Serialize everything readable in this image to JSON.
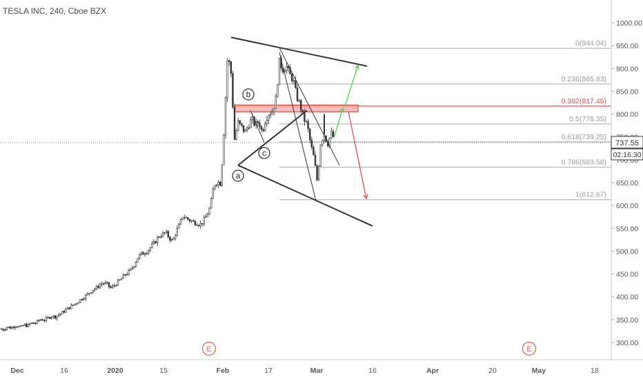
{
  "header": {
    "title": "TESLA INC, 240, Cboe BZX"
  },
  "colors": {
    "background": "#ffffff",
    "candle_up": "#ffffff",
    "candle_down": "#3a3a3a",
    "candle_outline": "#2b2b2b",
    "trendline": "#333333",
    "fib_line": "#a8a8a8",
    "fib_text": "#9a9a9a",
    "fib_highlight": "#e94c4c",
    "zone_fill": "#f6a6a6",
    "arrow_up": "#4cd44c",
    "arrow_down": "#e94c4c",
    "price_tag": "#ffffff",
    "price_tag_text": "#333333",
    "earnings": "#e06050"
  },
  "chart_data": {
    "type": "candlestick",
    "title": "TESLA INC, 240, Cboe BZX",
    "ylim": [
      265,
      1030
    ],
    "y_ticks": [
      300,
      350,
      400,
      450,
      500,
      550,
      600,
      650,
      700,
      750,
      800,
      850,
      900,
      950,
      1000
    ],
    "y_tick_labels": [
      "300.00",
      "350.00",
      "400.00",
      "450.00",
      "500.00",
      "550.00",
      "600.00",
      "650.00",
      "700.00",
      "750.00",
      "800.00",
      "850.00",
      "900.00",
      "950.00",
      "1000.00"
    ],
    "x_tick_labels": [
      "Dec",
      "16",
      "2020",
      "15",
      "Feb",
      "17",
      "Mar",
      "16",
      "Apr",
      "20",
      "May",
      "18"
    ],
    "current_price": "737.55",
    "countdown": "02:16:30",
    "fib_levels": [
      {
        "label": "0(944.04)",
        "value": 944.04,
        "highlight": false
      },
      {
        "label": "0.236(865.83)",
        "value": 865.83,
        "highlight": false
      },
      {
        "label": "0.382(817.45)",
        "value": 817.45,
        "highlight": true
      },
      {
        "label": "0.5(778.35)",
        "value": 778.35,
        "highlight": false
      },
      {
        "label": "0.618(739.25)",
        "value": 739.25,
        "highlight": false
      },
      {
        "label": "0.786(683.58)",
        "value": 683.58,
        "highlight": false
      },
      {
        "label": "1(612.67)",
        "value": 612.67,
        "highlight": false
      }
    ],
    "wave_labels": [
      "a",
      "b",
      "c"
    ],
    "earnings_markers": [
      "E",
      "E"
    ],
    "price_path": [
      [
        0,
        330
      ],
      [
        5,
        328
      ],
      [
        10,
        334
      ],
      [
        15,
        332
      ],
      [
        20,
        335
      ],
      [
        25,
        337
      ],
      [
        30,
        333
      ],
      [
        35,
        339
      ],
      [
        40,
        336
      ],
      [
        45,
        343
      ],
      [
        50,
        341
      ],
      [
        55,
        347
      ],
      [
        60,
        351
      ],
      [
        65,
        349
      ],
      [
        70,
        354
      ],
      [
        75,
        358
      ],
      [
        80,
        356
      ],
      [
        85,
        361
      ],
      [
        90,
        365
      ],
      [
        95,
        371
      ],
      [
        100,
        376
      ],
      [
        105,
        381
      ],
      [
        110,
        386
      ],
      [
        115,
        392
      ],
      [
        120,
        398
      ],
      [
        125,
        403
      ],
      [
        130,
        410
      ],
      [
        135,
        416
      ],
      [
        140,
        420
      ],
      [
        145,
        427
      ],
      [
        150,
        430
      ],
      [
        155,
        428
      ],
      [
        160,
        419
      ],
      [
        165,
        424
      ],
      [
        170,
        431
      ],
      [
        175,
        438
      ],
      [
        180,
        447
      ],
      [
        185,
        452
      ],
      [
        190,
        460
      ],
      [
        195,
        472
      ],
      [
        200,
        487
      ],
      [
        205,
        494
      ],
      [
        210,
        497
      ],
      [
        215,
        503
      ],
      [
        220,
        512
      ],
      [
        225,
        520
      ],
      [
        230,
        533
      ],
      [
        235,
        536
      ],
      [
        240,
        541
      ],
      [
        245,
        530
      ],
      [
        250,
        521
      ],
      [
        255,
        542
      ],
      [
        260,
        557
      ],
      [
        265,
        578
      ],
      [
        270,
        572
      ],
      [
        275,
        568
      ],
      [
        280,
        564
      ],
      [
        285,
        562
      ],
      [
        290,
        558
      ],
      [
        295,
        566
      ],
      [
        300,
        579
      ],
      [
        305,
        598
      ],
      [
        310,
        645
      ],
      [
        315,
        652
      ],
      [
        320,
        648
      ],
      [
        325,
        775
      ],
      [
        330,
        930
      ],
      [
        335,
        888
      ],
      [
        340,
        745
      ],
      [
        345,
        782
      ],
      [
        350,
        772
      ],
      [
        355,
        760
      ],
      [
        360,
        775
      ],
      [
        365,
        789
      ],
      [
        370,
        776
      ],
      [
        375,
        784
      ],
      [
        380,
        760
      ],
      [
        385,
        790
      ],
      [
        390,
        802
      ],
      [
        395,
        806
      ],
      [
        400,
        834
      ],
      [
        405,
        914
      ],
      [
        410,
        898
      ],
      [
        415,
        905
      ],
      [
        420,
        886
      ],
      [
        425,
        875
      ],
      [
        430,
        838
      ],
      [
        435,
        820
      ],
      [
        440,
        790
      ],
      [
        445,
        778
      ],
      [
        450,
        736
      ],
      [
        455,
        704
      ],
      [
        460,
        652
      ],
      [
        465,
        740
      ],
      [
        470,
        755
      ],
      [
        475,
        735
      ],
      [
        480,
        758
      ],
      [
        485,
        746
      ]
    ],
    "trendlines": [
      {
        "name": "upper-wedge",
        "points": [
          [
            335,
            968
          ],
          [
            532,
            905
          ]
        ]
      },
      {
        "name": "lower-wedge",
        "points": [
          [
            345,
            688
          ],
          [
            540,
            555
          ]
        ]
      },
      {
        "name": "rising-line",
        "points": [
          [
            345,
            688
          ],
          [
            445,
            808
          ]
        ]
      },
      {
        "name": "wave-b-to-c",
        "points": [
          [
            363,
            808
          ],
          [
            383,
            738
          ]
        ]
      },
      {
        "name": "fall-line-1",
        "points": [
          [
            405,
            945
          ],
          [
            492,
            688
          ]
        ]
      },
      {
        "name": "fall-line-2",
        "points": [
          [
            405,
            935
          ],
          [
            458,
            610
          ]
        ]
      },
      {
        "name": "post-c-spike",
        "points": [
          [
            470,
            800
          ],
          [
            470,
            755
          ]
        ]
      }
    ],
    "zone": {
      "from_x": 340,
      "to_x": 519,
      "low": 805,
      "high": 820
    },
    "arrows": [
      {
        "name": "up-1",
        "from": [
          484,
          748
        ],
        "to": [
          497,
          813
        ],
        "direction": "up"
      },
      {
        "name": "up-2",
        "from": [
          500,
          818
        ],
        "to": [
          519,
          907
        ],
        "direction": "up"
      },
      {
        "name": "down",
        "from": [
          505,
          805
        ],
        "to": [
          531,
          615
        ],
        "direction": "down"
      }
    ]
  }
}
